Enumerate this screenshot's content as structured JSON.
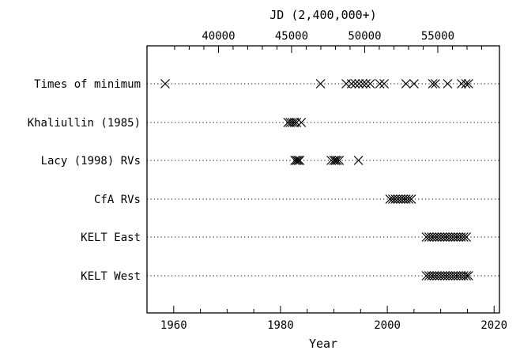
{
  "chart_data": {
    "type": "scatter",
    "marker": "x",
    "title": "",
    "xlabel": "Year",
    "x2label": "JD (2,400,000+)",
    "xlim": [
      1955,
      2021
    ],
    "xticks": [
      1960,
      1980,
      2000,
      2020
    ],
    "x_tick_labels": [
      "1960",
      "1980",
      "2000",
      "2020"
    ],
    "x2ticks": [
      40000,
      45000,
      50000,
      55000
    ],
    "x2_tick_labels": [
      "40000",
      "45000",
      "50000",
      "55000"
    ],
    "grid": "dotted guide line for each dataset",
    "categories": [
      "Times of minimum",
      "Khaliullin (1985)",
      "Lacy (1998) RVs",
      "CfA RVs",
      "KELT East",
      "KELT West"
    ],
    "series": [
      {
        "name": "Times of minimum",
        "x": [
          1958.4,
          1987.5,
          1992.3,
          1993.3,
          1994.0,
          1994.7,
          1995.4,
          1996.0,
          1996.8,
          1998.6,
          1999.4,
          2003.5,
          2005.0,
          2008.5,
          2009.0,
          2011.3,
          2013.9,
          2014.7,
          2015.2
        ]
      },
      {
        "name": "Khaliullin (1985)",
        "x": [
          1981.4,
          1981.8,
          1982.2,
          1982.6,
          1983.0,
          1983.9
        ]
      },
      {
        "name": "Lacy (1998) RVs",
        "x": [
          1982.7,
          1983.0,
          1983.3,
          1983.6,
          1989.5,
          1990.0,
          1990.3,
          1990.6,
          1991.0,
          1994.6
        ]
      },
      {
        "name": "CfA RVs",
        "x": [
          2000.5,
          2001.0,
          2001.5,
          2002.0,
          2002.5,
          2003.0,
          2003.5,
          2004.0,
          2004.5
        ]
      },
      {
        "name": "KELT East",
        "x": [
          2007.3,
          2007.8,
          2008.3,
          2008.8,
          2009.3,
          2009.8,
          2010.3,
          2010.8,
          2011.3,
          2011.8,
          2012.3,
          2012.8,
          2013.3,
          2013.8,
          2014.3,
          2014.8
        ]
      },
      {
        "name": "KELT West",
        "x": [
          2007.3,
          2007.8,
          2008.3,
          2008.8,
          2009.3,
          2009.8,
          2010.3,
          2010.8,
          2011.3,
          2011.8,
          2012.3,
          2012.8,
          2013.3,
          2013.8,
          2014.3,
          2014.8,
          2015.2
        ]
      }
    ]
  }
}
